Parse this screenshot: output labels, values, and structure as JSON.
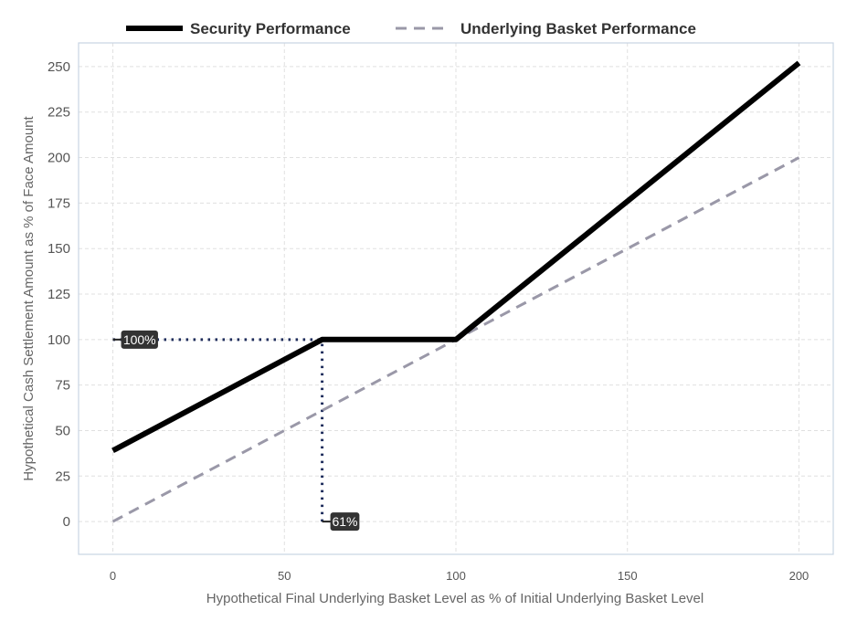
{
  "chart_data": {
    "type": "line",
    "xlabel": "Hypothetical Final Underlying Basket Level as % of Initial Underlying Basket Level",
    "ylabel": "Hypothetical Cash Settlement Amount as % of Face Amount",
    "xlim": [
      -10,
      210
    ],
    "ylim": [
      -18,
      263
    ],
    "x_ticks": [
      0,
      50,
      100,
      150,
      200
    ],
    "y_ticks": [
      0,
      25,
      50,
      75,
      100,
      125,
      150,
      175,
      200,
      225,
      250
    ],
    "grid": true,
    "legend_position": "top",
    "series": [
      {
        "name": "Security Performance",
        "style": "solid",
        "color": "#000000",
        "points": [
          [
            0,
            39
          ],
          [
            61,
            100
          ],
          [
            100,
            100
          ],
          [
            200,
            252
          ]
        ]
      },
      {
        "name": "Underlying Basket Performance",
        "style": "dashed",
        "color": "#9a98a8",
        "points": [
          [
            0,
            0
          ],
          [
            200,
            200
          ]
        ]
      }
    ],
    "reference_lines": {
      "color": "#1f2d5c",
      "horizontal": {
        "y": 100,
        "x_from": 0,
        "x_to": 61
      },
      "vertical": {
        "x": 61,
        "y_from": 0,
        "y_to": 100
      }
    },
    "annotations": [
      {
        "text": "100%",
        "x": 0,
        "y": 100
      },
      {
        "text": "61%",
        "x": 61,
        "y": 0
      }
    ]
  }
}
